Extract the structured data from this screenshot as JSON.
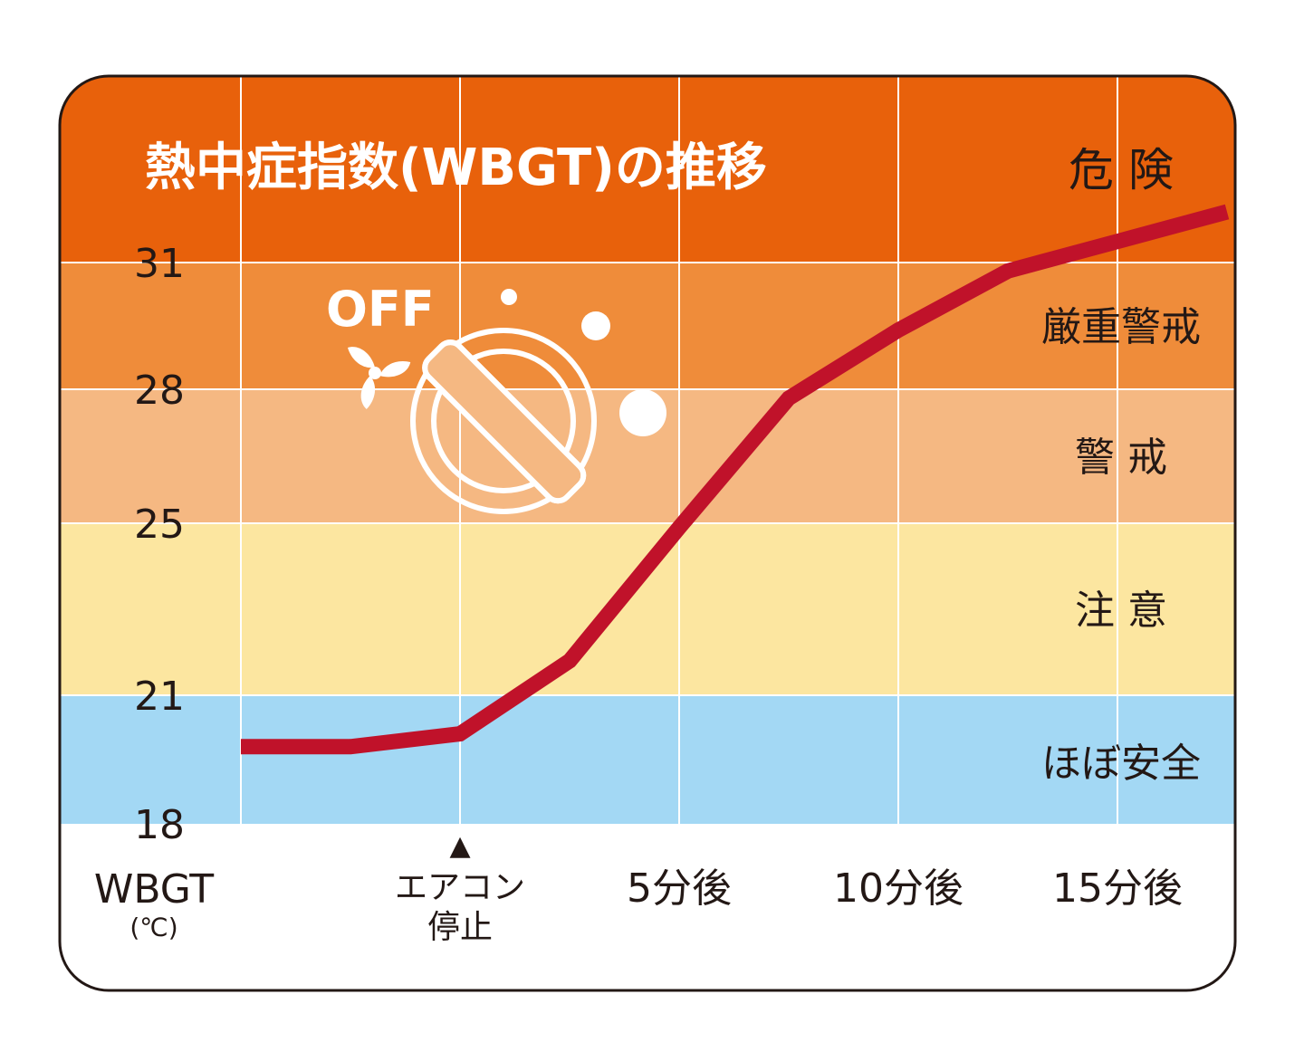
{
  "chart_data": {
    "type": "line",
    "title": "熱中症指数(WBGT)の推移",
    "y_axis": {
      "label": "WBGT",
      "unit": "(℃)",
      "ticks": [
        "31",
        "28",
        "25",
        "21",
        "18"
      ]
    },
    "x_axis": {
      "labels": [
        {
          "line1": "エアコン",
          "line2": "停止"
        },
        {
          "line1": "5分後",
          "line2": ""
        },
        {
          "line1": "10分後",
          "line2": ""
        },
        {
          "line1": "15分後",
          "line2": ""
        }
      ]
    },
    "zones": [
      {
        "name": "危 険",
        "from": 31,
        "to": 33.5,
        "color": "#E8610B"
      },
      {
        "name": "厳重警戒",
        "from": 28,
        "to": 31,
        "color": "#EF8C3A"
      },
      {
        "name": "警 戒",
        "from": 25,
        "to": 28,
        "color": "#F5B882"
      },
      {
        "name": "注 意",
        "from": 21,
        "to": 25,
        "color": "#FCE6A0"
      },
      {
        "name": "ほぼ安全",
        "from": 18,
        "to": 21,
        "color": "#A3D8F4"
      }
    ],
    "series": [
      {
        "color": "#C0122A",
        "x": [
          -5,
          -2.5,
          0,
          2.5,
          5,
          7.5,
          10,
          12.5,
          15,
          17.5
        ],
        "y": [
          19.8,
          19.8,
          20.1,
          21.8,
          24.9,
          27.8,
          29.4,
          30.8,
          31.5,
          32.2
        ]
      }
    ],
    "grid": true
  },
  "icon": {
    "off_text": "OFF",
    "name": "aircon-off-icon"
  },
  "marker": {
    "name": "triangle-marker",
    "glyph": "▲"
  }
}
